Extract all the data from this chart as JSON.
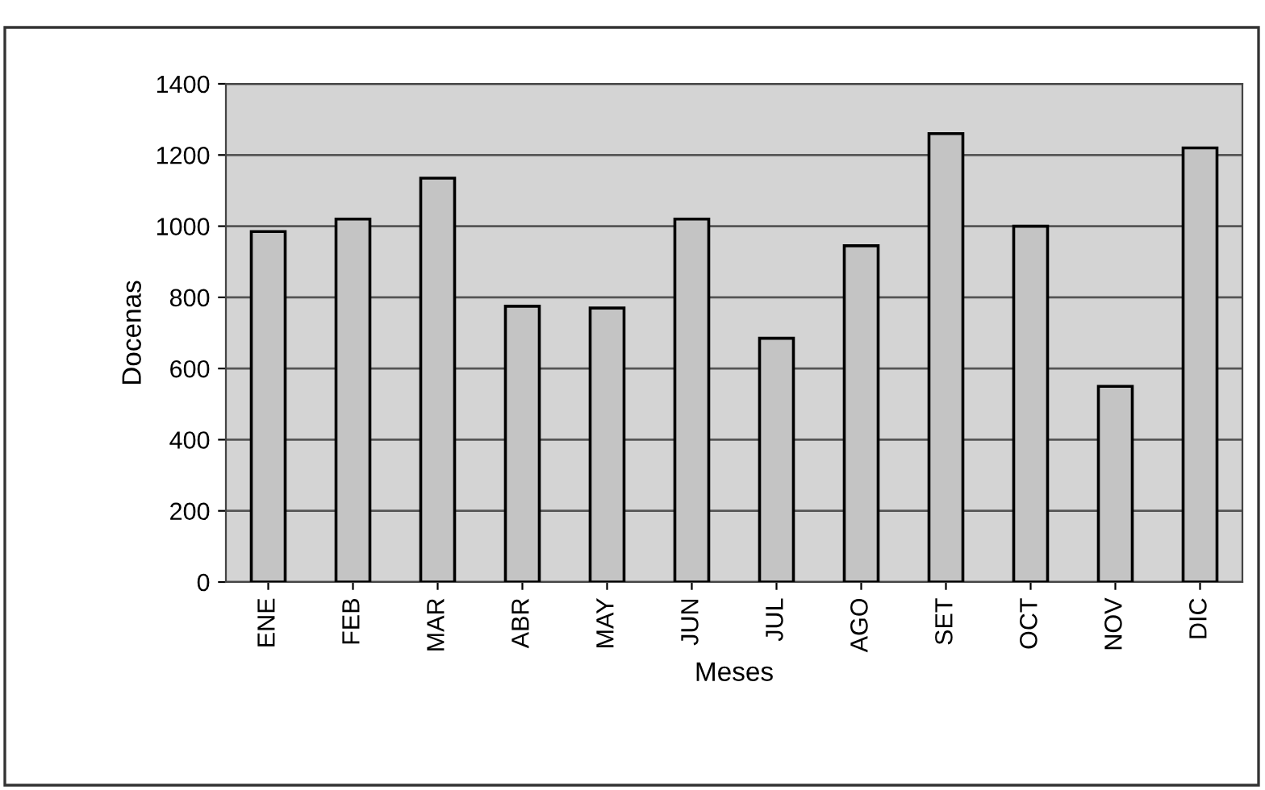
{
  "chart_data": {
    "type": "bar",
    "xlabel": "Meses",
    "ylabel": "Docenas",
    "categories": [
      "ENE",
      "FEB",
      "MAR",
      "ABR",
      "MAY",
      "JUN",
      "JUL",
      "AGO",
      "SET",
      "OCT",
      "NOV",
      "DIC"
    ],
    "values": [
      985,
      1020,
      1135,
      775,
      770,
      1020,
      685,
      945,
      1260,
      1000,
      550,
      1220
    ],
    "color": "#c4c4c4",
    "ylim": [
      0,
      1400
    ],
    "yticks": [
      0,
      200,
      400,
      600,
      800,
      1000,
      1200,
      1400
    ],
    "grid": "y"
  }
}
